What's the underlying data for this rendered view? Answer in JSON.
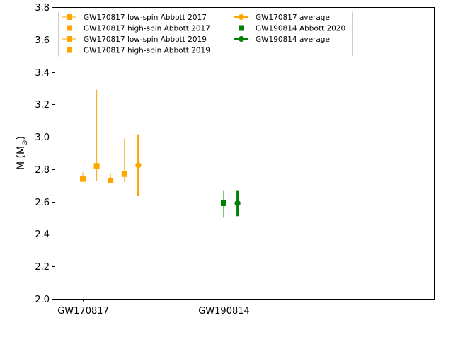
{
  "chart_data": {
    "type": "scatter",
    "ylabel": "M (M",
    "ylabel_sub": "⊙",
    "ylabel_close": ")",
    "ylim": [
      2.0,
      3.8
    ],
    "y_ticks": [
      2.0,
      2.2,
      2.4,
      2.6,
      2.8,
      3.0,
      3.2,
      3.4,
      3.6,
      3.8
    ],
    "y_tick_labels": [
      "2.0",
      "2.2",
      "2.4",
      "2.6",
      "2.8",
      "3.0",
      "3.2",
      "3.4",
      "3.6",
      "3.8"
    ],
    "x_tick_labels": [
      "GW170817",
      "GW190814"
    ],
    "legend_position": "top-left",
    "series": [
      {
        "name": "GW170817 low-spin Abbott 2017",
        "event": "GW170817",
        "slot": 0,
        "color": "#ffa500",
        "marker": "square",
        "bold": false,
        "y": 2.74,
        "yerr_low": 0.01,
        "yerr_high": 0.04
      },
      {
        "name": "GW170817 high-spin Abbott 2017",
        "event": "GW170817",
        "slot": 1,
        "color": "#ffa500",
        "marker": "square",
        "bold": false,
        "y": 2.82,
        "yerr_low": 0.09,
        "yerr_high": 0.47
      },
      {
        "name": "GW170817 low-spin Abbott 2019",
        "event": "GW170817",
        "slot": 2,
        "color": "#ffa500",
        "marker": "square",
        "bold": false,
        "y": 2.73,
        "yerr_low": 0.01,
        "yerr_high": 0.04
      },
      {
        "name": "GW170817 high-spin Abbott 2019",
        "event": "GW170817",
        "slot": 3,
        "color": "#ffa500",
        "marker": "square",
        "bold": false,
        "y": 2.77,
        "yerr_low": 0.05,
        "yerr_high": 0.22
      },
      {
        "name": "GW170817 average",
        "event": "GW170817",
        "slot": 4,
        "color": "#ffa500",
        "marker": "circle",
        "bold": true,
        "y": 2.825,
        "yerr_low": 0.19,
        "yerr_high": 0.19
      },
      {
        "name": "GW190814 Abbott 2020",
        "event": "GW190814",
        "slot": 0,
        "color": "#008000",
        "marker": "square",
        "bold": false,
        "y": 2.59,
        "yerr_low": 0.09,
        "yerr_high": 0.08
      },
      {
        "name": "GW190814 average",
        "event": "GW190814",
        "slot": 1,
        "color": "#008000",
        "marker": "circle",
        "bold": true,
        "y": 2.59,
        "yerr_low": 0.08,
        "yerr_high": 0.08
      }
    ]
  }
}
